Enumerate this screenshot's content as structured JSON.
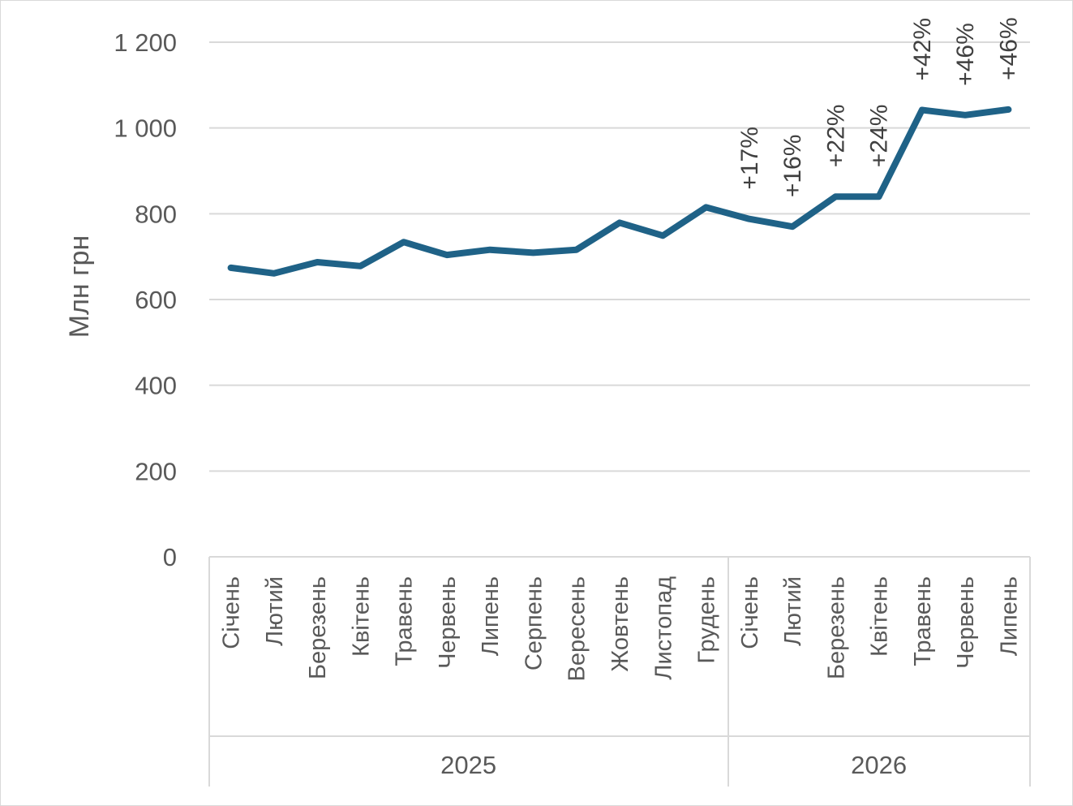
{
  "chart_data": {
    "type": "line",
    "title": "",
    "ylabel": "Млн грн",
    "xlabel": "",
    "ylim": [
      0,
      1200
    ],
    "yticks": [
      0,
      200,
      400,
      600,
      800,
      1000,
      1200
    ],
    "ytick_labels": [
      "0",
      "200",
      "400",
      "600",
      "800",
      "1 000",
      "1 200"
    ],
    "grid": true,
    "legend": "none",
    "colors": {
      "line": "#1F6287"
    },
    "groups": [
      {
        "label": "2025",
        "count": 12
      },
      {
        "label": "2026",
        "count": 7
      }
    ],
    "categories": [
      "Січень",
      "Лютий",
      "Березень",
      "Квітень",
      "Травень",
      "Червень",
      "Липень",
      "Серпень",
      "Вересень",
      "Жовтень",
      "Листопад",
      "Грудень",
      "Січень",
      "Лютий",
      "Березень",
      "Квітень",
      "Травень",
      "Червень",
      "Липень"
    ],
    "series": [
      {
        "values": [
          674,
          661,
          687,
          678,
          734,
          704,
          716,
          709,
          716,
          779,
          749,
          815,
          788,
          770,
          840,
          840,
          1042,
          1030,
          1043
        ]
      }
    ],
    "annotations": [
      {
        "index": 12,
        "text": "+17%"
      },
      {
        "index": 13,
        "text": "+16%"
      },
      {
        "index": 14,
        "text": "+22%"
      },
      {
        "index": 15,
        "text": "+24%"
      },
      {
        "index": 16,
        "text": "+42%"
      },
      {
        "index": 17,
        "text": "+46%"
      },
      {
        "index": 18,
        "text": "+46%"
      }
    ]
  }
}
